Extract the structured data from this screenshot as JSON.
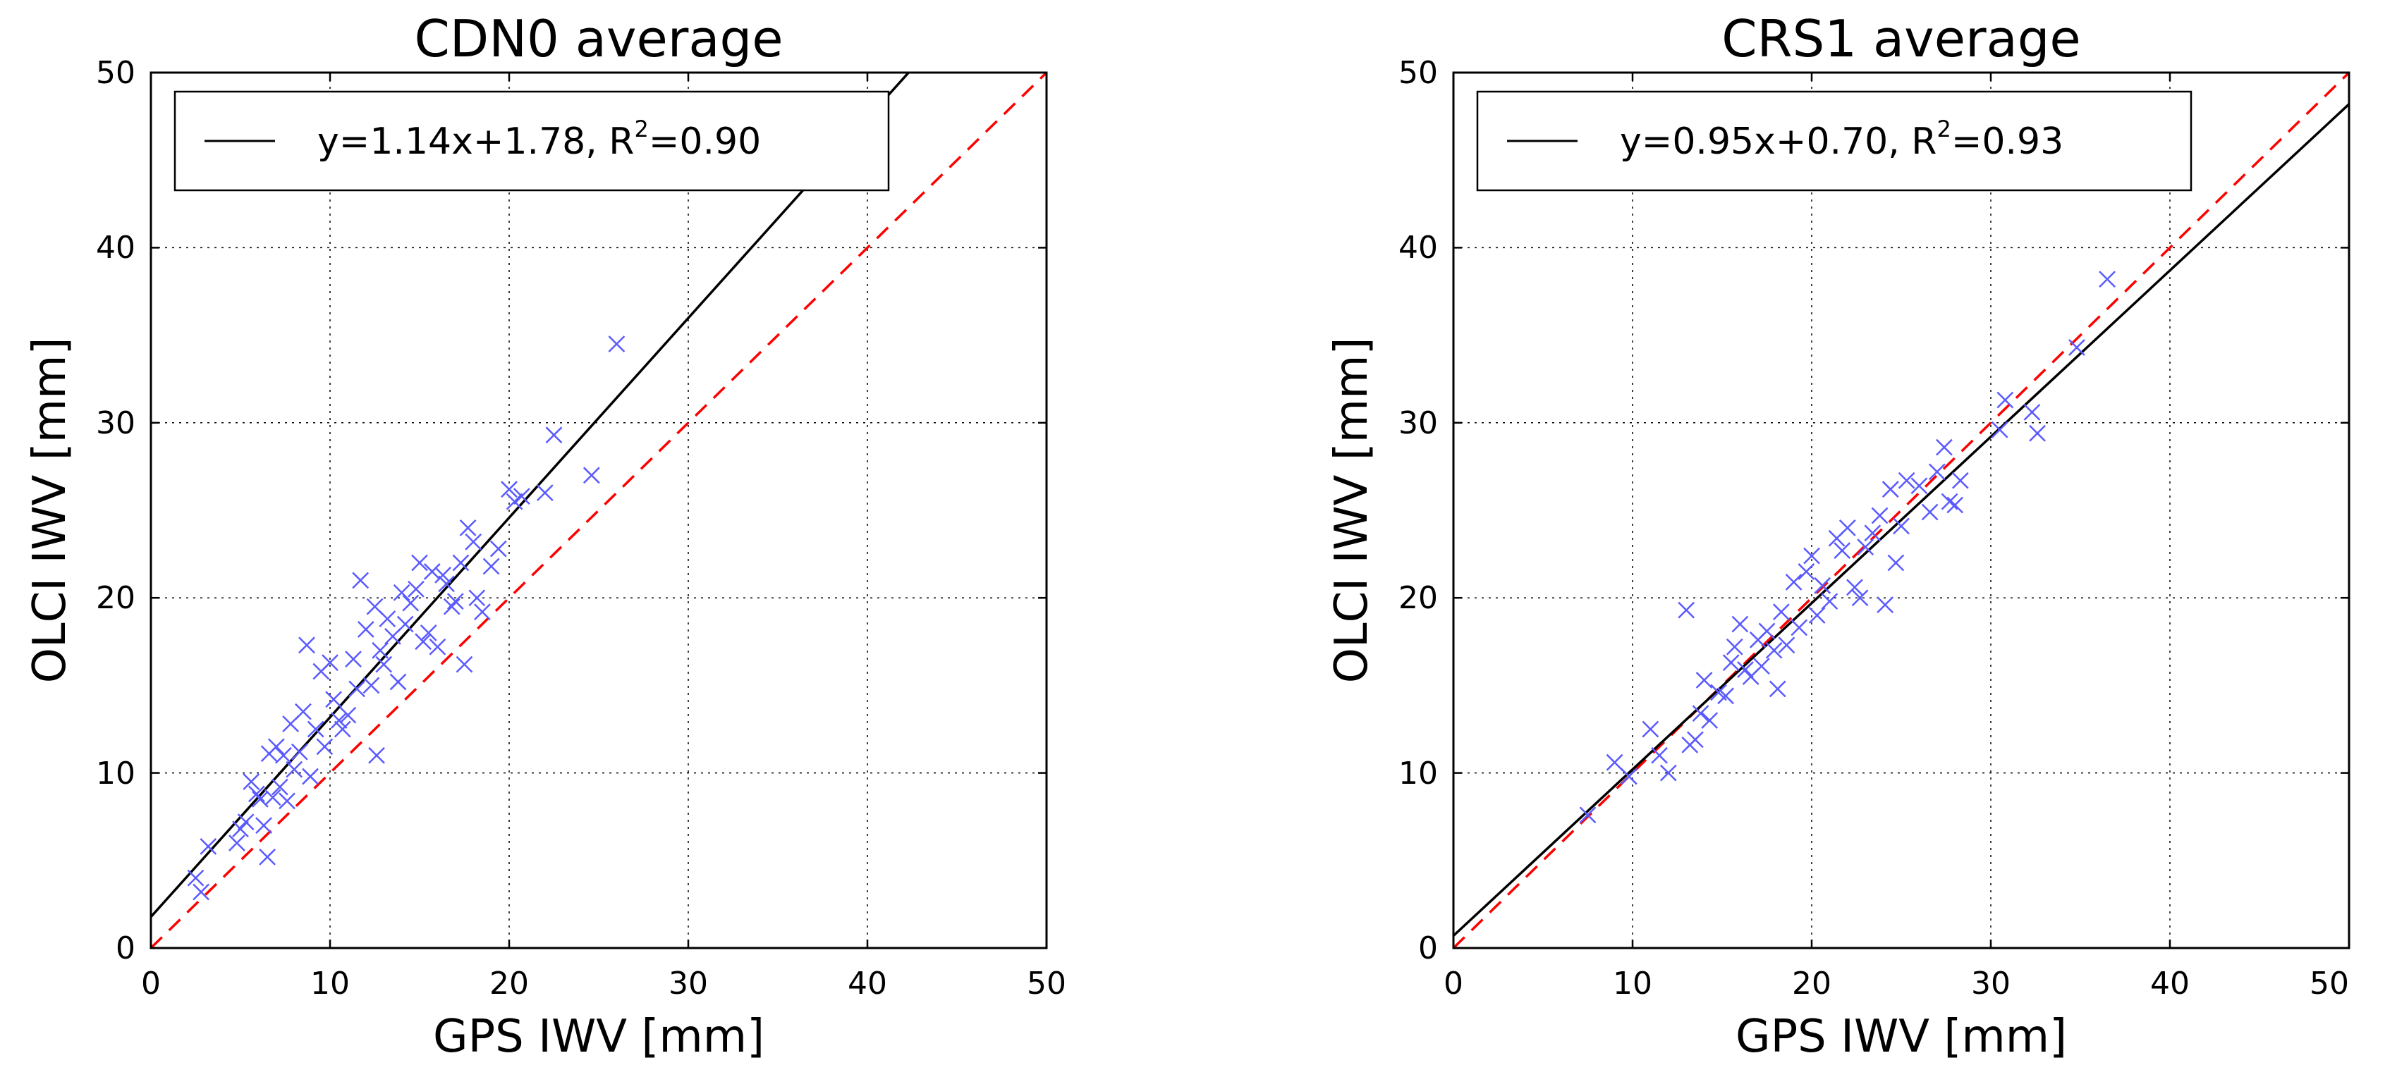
{
  "chart_data": [
    {
      "type": "scatter",
      "title": "CDN0 average",
      "xlabel": "GPS IWV [mm]",
      "ylabel": "OLCI IWV [mm]",
      "xlim": [
        0,
        50
      ],
      "ylim": [
        0,
        50
      ],
      "xticks": [
        "0",
        "10",
        "20",
        "30",
        "40",
        "50"
      ],
      "yticks": [
        "0",
        "10",
        "20",
        "30",
        "40",
        "50"
      ],
      "grid": true,
      "legend_position": "top-left",
      "fit": {
        "slope": 1.14,
        "intercept": 1.78,
        "color": "#000000"
      },
      "identity_line": {
        "slope": 1,
        "intercept": 0,
        "color": "#ff0000",
        "style": "dashed"
      },
      "legend": {
        "prefix": "y=1.14x+1.78, R",
        "sup": "2",
        "suffix": "=0.90"
      },
      "marker_color": "#5a5aff",
      "points": [
        [
          2.5,
          4.0
        ],
        [
          2.8,
          3.2
        ],
        [
          3.2,
          5.8
        ],
        [
          4.8,
          6.0
        ],
        [
          5.0,
          6.8
        ],
        [
          5.3,
          7.2
        ],
        [
          5.6,
          9.5
        ],
        [
          5.9,
          8.8
        ],
        [
          6.1,
          8.5
        ],
        [
          6.3,
          7.0
        ],
        [
          6.5,
          5.2
        ],
        [
          6.6,
          11.1
        ],
        [
          6.8,
          8.6
        ],
        [
          7.0,
          11.5
        ],
        [
          7.2,
          9.2
        ],
        [
          7.4,
          11.0
        ],
        [
          7.6,
          8.4
        ],
        [
          7.8,
          12.8
        ],
        [
          8.0,
          10.2
        ],
        [
          8.3,
          11.2
        ],
        [
          8.5,
          13.5
        ],
        [
          8.7,
          17.3
        ],
        [
          8.9,
          9.8
        ],
        [
          9.2,
          12.5
        ],
        [
          9.5,
          15.8
        ],
        [
          9.7,
          11.5
        ],
        [
          10.0,
          16.3
        ],
        [
          10.2,
          14.2
        ],
        [
          10.5,
          13.0
        ],
        [
          10.7,
          12.5
        ],
        [
          11.0,
          13.3
        ],
        [
          11.3,
          16.5
        ],
        [
          11.5,
          14.8
        ],
        [
          11.7,
          21.0
        ],
        [
          12.0,
          18.2
        ],
        [
          12.3,
          15.0
        ],
        [
          12.5,
          19.5
        ],
        [
          12.6,
          11.0
        ],
        [
          12.8,
          17.0
        ],
        [
          13.0,
          16.2
        ],
        [
          13.2,
          18.8
        ],
        [
          13.5,
          17.8
        ],
        [
          13.8,
          15.2
        ],
        [
          14.0,
          20.3
        ],
        [
          14.2,
          18.5
        ],
        [
          14.5,
          19.7
        ],
        [
          14.8,
          20.5
        ],
        [
          15.0,
          22.0
        ],
        [
          15.2,
          17.5
        ],
        [
          15.5,
          18.0
        ],
        [
          15.7,
          21.5
        ],
        [
          16.0,
          17.2
        ],
        [
          16.3,
          21.3
        ],
        [
          16.5,
          20.8
        ],
        [
          16.8,
          19.5
        ],
        [
          17.0,
          19.8
        ],
        [
          17.3,
          22.0
        ],
        [
          17.5,
          16.2
        ],
        [
          17.7,
          24.0
        ],
        [
          18.0,
          23.2
        ],
        [
          18.2,
          20.0
        ],
        [
          18.5,
          19.2
        ],
        [
          19.0,
          21.8
        ],
        [
          19.4,
          22.8
        ],
        [
          20.0,
          26.2
        ],
        [
          20.3,
          25.5
        ],
        [
          20.7,
          25.8
        ],
        [
          22.0,
          26.0
        ],
        [
          22.5,
          29.3
        ],
        [
          24.6,
          27.0
        ],
        [
          26.0,
          34.5
        ]
      ]
    },
    {
      "type": "scatter",
      "title": "CRS1 average",
      "xlabel": "GPS IWV [mm]",
      "ylabel": "OLCI IWV [mm]",
      "xlim": [
        0,
        50
      ],
      "ylim": [
        0,
        50
      ],
      "xticks": [
        "0",
        "10",
        "20",
        "30",
        "40",
        "50"
      ],
      "yticks": [
        "0",
        "10",
        "20",
        "30",
        "40",
        "50"
      ],
      "grid": true,
      "legend_position": "top-left",
      "fit": {
        "slope": 0.95,
        "intercept": 0.7,
        "color": "#000000"
      },
      "identity_line": {
        "slope": 1,
        "intercept": 0,
        "color": "#ff0000",
        "style": "dashed"
      },
      "legend": {
        "prefix": "y=0.95x+0.70, R",
        "sup": "2",
        "suffix": "=0.93"
      },
      "marker_color": "#5a5aff",
      "points": [
        [
          7.5,
          7.6
        ],
        [
          9.0,
          10.6
        ],
        [
          9.8,
          9.8
        ],
        [
          11.0,
          12.5
        ],
        [
          11.5,
          11.0
        ],
        [
          12.0,
          10.0
        ],
        [
          13.0,
          19.3
        ],
        [
          13.2,
          11.6
        ],
        [
          13.5,
          11.9
        ],
        [
          13.8,
          13.4
        ],
        [
          14.0,
          15.3
        ],
        [
          14.3,
          13.0
        ],
        [
          14.8,
          14.6
        ],
        [
          15.2,
          14.4
        ],
        [
          15.5,
          16.3
        ],
        [
          15.7,
          17.2
        ],
        [
          16.0,
          18.5
        ],
        [
          16.3,
          15.9
        ],
        [
          16.6,
          15.5
        ],
        [
          17.0,
          17.6
        ],
        [
          17.2,
          16.1
        ],
        [
          17.5,
          18.1
        ],
        [
          17.9,
          17.0
        ],
        [
          18.1,
          14.8
        ],
        [
          18.3,
          19.2
        ],
        [
          18.6,
          17.3
        ],
        [
          19.0,
          20.9
        ],
        [
          19.3,
          18.3
        ],
        [
          19.7,
          21.5
        ],
        [
          20.0,
          22.4
        ],
        [
          20.3,
          19.0
        ],
        [
          20.6,
          20.7
        ],
        [
          21.0,
          19.8
        ],
        [
          21.4,
          23.4
        ],
        [
          21.7,
          22.7
        ],
        [
          22.0,
          24.0
        ],
        [
          22.4,
          20.6
        ],
        [
          22.7,
          20.0
        ],
        [
          23.0,
          22.9
        ],
        [
          23.4,
          23.7
        ],
        [
          23.8,
          24.7
        ],
        [
          24.1,
          19.6
        ],
        [
          24.4,
          26.2
        ],
        [
          24.7,
          22.0
        ],
        [
          25.0,
          24.1
        ],
        [
          25.3,
          26.7
        ],
        [
          26.0,
          26.4
        ],
        [
          26.6,
          24.9
        ],
        [
          27.0,
          27.2
        ],
        [
          27.4,
          28.6
        ],
        [
          27.7,
          25.5
        ],
        [
          28.0,
          25.3
        ],
        [
          28.3,
          26.7
        ],
        [
          30.5,
          29.6
        ],
        [
          30.8,
          31.3
        ],
        [
          32.3,
          30.6
        ],
        [
          32.6,
          29.4
        ],
        [
          34.8,
          34.3
        ],
        [
          36.5,
          38.2
        ]
      ]
    }
  ]
}
